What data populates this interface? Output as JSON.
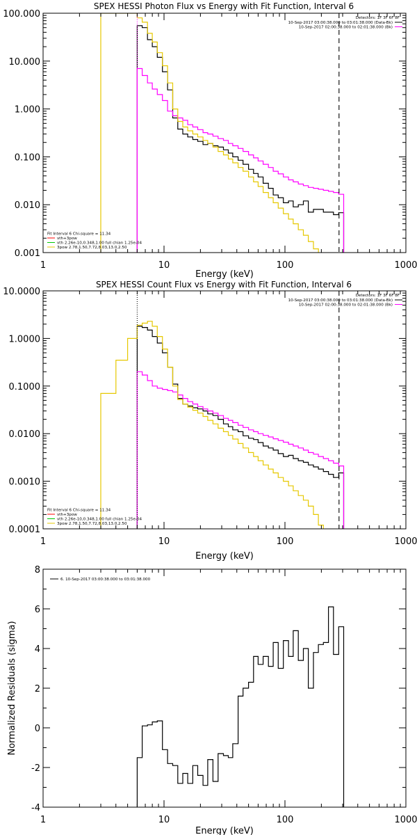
{
  "chart_data": [
    {
      "type": "line",
      "title": "SPEX HESSI Photon Flux vs Energy with Fit Function, Interval 6",
      "xlabel": "Energy (keV)",
      "ylabel": "",
      "xscale": "log",
      "yscale": "log",
      "xlim": [
        1,
        1000
      ],
      "ylim": [
        0.001,
        100
      ],
      "x_ticks": [
        "1",
        "10",
        "100",
        "1000"
      ],
      "y_ticks": [
        "0.001",
        "0.010",
        "0.100",
        "1.000",
        "10.000",
        "100.000"
      ],
      "legend_top": {
        "placement": "top-right",
        "header": "Detectors: 1F 3F 6F 8F",
        "entries": [
          {
            "text": "10-Sep-2017 03:00:38.000 to 03:01:38.000 (Data-Bk)",
            "color": "#000000"
          },
          {
            "text": "10-Sep-2017 02:00:38.000 to 02:01:38.000 (Bk)",
            "color": "#ff00ff"
          }
        ]
      },
      "legend_bottom": {
        "placement": "bottom-left",
        "header": "Fit Interval 6    Chi-square = 11.34",
        "entries": [
          {
            "text": "vth+3pow",
            "color": "#ff0000"
          },
          {
            "text": "vth 2.26e-10,0.348,1.00  full chian 1.25e-04",
            "color": "#00c800"
          },
          {
            "text": "3pow 2.78,1.50,7.72,8.03,13.0,2.50",
            "color": "#e6c800"
          }
        ]
      },
      "vlines": [
        {
          "x": 6,
          "style": "dotted",
          "color": "#ff00ff"
        },
        {
          "x": 280,
          "style": "dashed",
          "color": "#000000"
        }
      ],
      "series": [
        {
          "name": "Data-Bk",
          "color": "#000000",
          "x": [
            6,
            6.6,
            7.3,
            8,
            8.8,
            9.7,
            10.7,
            11.8,
            13,
            14.3,
            15.7,
            17.3,
            19,
            21,
            23,
            25.4,
            28,
            31,
            34,
            37,
            41,
            45,
            50,
            55,
            60,
            66,
            73,
            80,
            88,
            97,
            107,
            117,
            129,
            142,
            156,
            172,
            189,
            208,
            229,
            252,
            278
          ],
          "y": [
            55,
            50,
            28,
            20,
            12,
            6,
            2.5,
            0.65,
            0.38,
            0.3,
            0.26,
            0.23,
            0.21,
            0.18,
            0.19,
            0.17,
            0.16,
            0.14,
            0.12,
            0.1,
            0.085,
            0.07,
            0.055,
            0.045,
            0.038,
            0.028,
            0.022,
            0.016,
            0.014,
            0.011,
            0.012,
            0.009,
            0.01,
            0.012,
            0.007,
            0.008,
            0.008,
            0.007,
            0.007,
            0.0062,
            0.0068
          ]
        },
        {
          "name": "Bk",
          "color": "#ff00ff",
          "x": [
            6,
            6.6,
            7.3,
            8,
            8.8,
            9.7,
            10.7,
            11.8,
            13,
            14.3,
            15.7,
            17.3,
            19,
            21,
            23,
            25.4,
            28,
            31,
            34,
            37,
            41,
            45,
            50,
            55,
            60,
            66,
            73,
            80,
            88,
            97,
            107,
            117,
            129,
            142,
            156,
            172,
            189,
            208,
            229,
            252,
            278
          ],
          "y": [
            7,
            5,
            3.5,
            2.6,
            2,
            1.5,
            0.9,
            0.72,
            0.65,
            0.58,
            0.47,
            0.42,
            0.37,
            0.32,
            0.3,
            0.27,
            0.24,
            0.22,
            0.19,
            0.17,
            0.15,
            0.13,
            0.11,
            0.095,
            0.082,
            0.07,
            0.06,
            0.05,
            0.044,
            0.038,
            0.033,
            0.03,
            0.027,
            0.025,
            0.023,
            0.022,
            0.021,
            0.02,
            0.019,
            0.018,
            0.0165
          ]
        },
        {
          "name": "3pow",
          "color": "#e6c800",
          "x": [
            3,
            6,
            6.6,
            7.3,
            8,
            8.8,
            9.7,
            10.7,
            11.8,
            13,
            14.3,
            15.7,
            17.3,
            19,
            21,
            23,
            25.4,
            28,
            31,
            34,
            37,
            41,
            45,
            50,
            55,
            60,
            66,
            73,
            80,
            88,
            97,
            107,
            117,
            129,
            142,
            156,
            172
          ],
          "y": [
            100,
            80,
            65,
            38,
            25,
            15,
            8,
            3.5,
            1,
            0.55,
            0.42,
            0.35,
            0.3,
            0.26,
            0.22,
            0.19,
            0.16,
            0.13,
            0.11,
            0.09,
            0.075,
            0.06,
            0.05,
            0.038,
            0.03,
            0.024,
            0.018,
            0.014,
            0.011,
            0.0085,
            0.0065,
            0.005,
            0.004,
            0.003,
            0.0023,
            0.0017,
            0.0012
          ]
        }
      ]
    },
    {
      "type": "line",
      "title": "SPEX HESSI Count Flux vs Energy with Fit Function, Interval 6",
      "xlabel": "Energy (keV)",
      "ylabel": "",
      "xscale": "log",
      "yscale": "log",
      "xlim": [
        1,
        1000
      ],
      "ylim": [
        0.0001,
        10
      ],
      "x_ticks": [
        "1",
        "10",
        "100",
        "1000"
      ],
      "y_ticks": [
        "0.0001",
        "0.0010",
        "0.0100",
        "0.1000",
        "1.0000",
        "10.0000"
      ],
      "legend_top": {
        "placement": "top-right",
        "header": "Detectors: 1F 3F 6F 8F",
        "entries": [
          {
            "text": "10-Sep-2017 03:00:38.000 to 03:01:38.000 (Data-Bk)",
            "color": "#000000"
          },
          {
            "text": "10-Sep-2017 02:00:38.000 to 02:01:38.000 (Bk)",
            "color": "#ff00ff"
          }
        ]
      },
      "legend_bottom": {
        "placement": "bottom-left",
        "header": "Fit Interval 6    Chi-square = 11.34",
        "entries": [
          {
            "text": "vth+3pow",
            "color": "#ff0000"
          },
          {
            "text": "vth 2.26e-10,0.348,1.00  full chian 1.25e-04",
            "color": "#00c800"
          },
          {
            "text": "3pow 2.78,1.50,7.72,8.03,13.0,2.50",
            "color": "#e6c800"
          }
        ]
      },
      "vlines": [
        {
          "x": 6,
          "style": "dotted",
          "color": "#000000"
        },
        {
          "x": 280,
          "style": "dashed",
          "color": "#000000"
        }
      ],
      "series": [
        {
          "name": "Data-Bk",
          "color": "#000000",
          "x": [
            6,
            6.6,
            7.3,
            8,
            8.8,
            9.7,
            10.7,
            11.8,
            13,
            14.3,
            15.7,
            17.3,
            19,
            21,
            23,
            25.4,
            28,
            31,
            34,
            37,
            41,
            45,
            50,
            55,
            60,
            66,
            73,
            80,
            88,
            97,
            107,
            117,
            129,
            142,
            156,
            172,
            189,
            208,
            229,
            252,
            278
          ],
          "y": [
            1.8,
            1.7,
            1.5,
            1.1,
            0.8,
            0.5,
            0.25,
            0.11,
            0.055,
            0.042,
            0.038,
            0.035,
            0.033,
            0.03,
            0.026,
            0.024,
            0.02,
            0.016,
            0.014,
            0.012,
            0.011,
            0.009,
            0.008,
            0.0075,
            0.0065,
            0.0055,
            0.005,
            0.0045,
            0.0038,
            0.0033,
            0.0035,
            0.003,
            0.0027,
            0.0025,
            0.0022,
            0.002,
            0.0018,
            0.0016,
            0.0014,
            0.0012,
            0.0015
          ]
        },
        {
          "name": "Bk",
          "color": "#ff00ff",
          "x": [
            6,
            6.6,
            7.3,
            8,
            8.8,
            9.7,
            10.7,
            11.8,
            13,
            14.3,
            15.7,
            17.3,
            19,
            21,
            23,
            25.4,
            28,
            31,
            34,
            37,
            41,
            45,
            50,
            55,
            60,
            66,
            73,
            80,
            88,
            97,
            107,
            117,
            129,
            142,
            156,
            172,
            189,
            208,
            229,
            252,
            278
          ],
          "y": [
            0.2,
            0.17,
            0.13,
            0.1,
            0.09,
            0.085,
            0.08,
            0.075,
            0.065,
            0.055,
            0.047,
            0.042,
            0.037,
            0.033,
            0.03,
            0.027,
            0.024,
            0.021,
            0.019,
            0.017,
            0.015,
            0.0135,
            0.012,
            0.011,
            0.01,
            0.0092,
            0.0085,
            0.0078,
            0.0072,
            0.0066,
            0.006,
            0.0055,
            0.005,
            0.0045,
            0.004,
            0.0037,
            0.0033,
            0.003,
            0.0027,
            0.0024,
            0.0021
          ]
        },
        {
          "name": "3pow",
          "color": "#e6c800",
          "x": [
            3,
            4,
            5,
            6,
            6.6,
            7.3,
            8,
            8.8,
            9.7,
            10.7,
            11.8,
            13,
            14.3,
            15.7,
            17.3,
            19,
            21,
            23,
            25.4,
            28,
            31,
            34,
            37,
            41,
            45,
            50,
            55,
            60,
            66,
            73,
            80,
            88,
            97,
            107,
            117,
            129,
            142,
            156,
            172,
            189
          ],
          "y": [
            0.07,
            0.35,
            1,
            1.9,
            2.1,
            2.3,
            1.8,
            1.1,
            0.6,
            0.25,
            0.1,
            0.052,
            0.042,
            0.036,
            0.031,
            0.027,
            0.023,
            0.019,
            0.016,
            0.013,
            0.011,
            0.0092,
            0.0077,
            0.0062,
            0.005,
            0.004,
            0.0033,
            0.0027,
            0.0022,
            0.0018,
            0.0015,
            0.0012,
            0.001,
            0.0008,
            0.00063,
            0.0005,
            0.0004,
            0.0003,
            0.0002,
            0.00012
          ]
        }
      ]
    },
    {
      "type": "line",
      "title": "",
      "xlabel": "Energy (keV)",
      "ylabel": "Normalized Residuals (sigma)",
      "xscale": "log",
      "yscale": "linear",
      "xlim": [
        1,
        1000
      ],
      "ylim": [
        -4,
        8
      ],
      "x_ticks": [
        "1",
        "10",
        "100",
        "1000"
      ],
      "y_ticks": [
        "-4",
        "-2",
        "0",
        "2",
        "4",
        "6",
        "8"
      ],
      "legend": {
        "placement": "top-left",
        "entries": [
          {
            "text": "6. 10-Sep-2017 03:00:38.000 to 03:01:38.000",
            "color": "#000000"
          }
        ]
      },
      "series": [
        {
          "name": "6. 10-Sep-2017 03:00:38.000 to 03:01:38.000",
          "color": "#000000",
          "x": [
            6,
            6.6,
            7.3,
            8,
            8.8,
            9.7,
            10.7,
            11.8,
            13,
            14.3,
            15.7,
            17.3,
            19,
            21,
            23,
            25.4,
            28,
            31,
            34,
            37,
            41,
            45,
            50,
            55,
            60,
            66,
            73,
            80,
            88,
            97,
            107,
            117,
            129,
            142,
            156,
            172,
            189,
            208,
            229,
            252,
            278
          ],
          "y": [
            -1.5,
            0.1,
            0.15,
            0.3,
            0.35,
            -1.1,
            -1.8,
            -1.9,
            -2.8,
            -2.3,
            -2.8,
            -1.9,
            -2.4,
            -2.9,
            -1.6,
            -2.7,
            -1.3,
            -1.4,
            -1.5,
            -0.8,
            1.6,
            2.0,
            2.3,
            3.6,
            3.2,
            3.6,
            3.1,
            4.3,
            3.0,
            4.4,
            3.6,
            4.9,
            3.4,
            4.0,
            2.0,
            3.8,
            4.2,
            4.3,
            6.1,
            3.7,
            5.1
          ]
        }
      ]
    }
  ]
}
